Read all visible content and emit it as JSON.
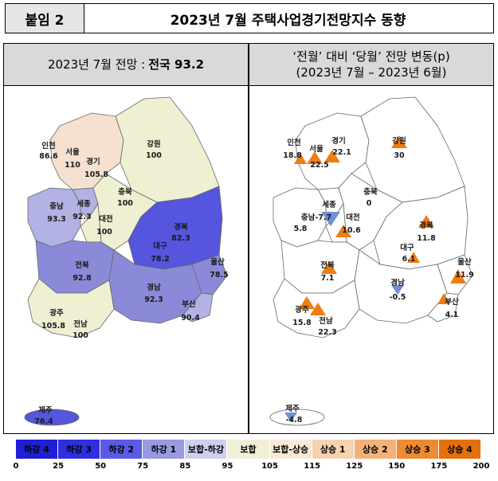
{
  "header": {
    "tag": "붙임 2",
    "title": "2023년 7월 주택사업경기전망지수 동향"
  },
  "left_panel": {
    "title_prefix": "2023년 7월 전망 : ",
    "title_bold": "전국 93.2"
  },
  "right_panel": {
    "title_line1": "‘전월’ 대비 ‘당월’ 전망 변동(p)",
    "title_line2": "(2023년 7월 – 2023년 6월)"
  },
  "regions_left": [
    {
      "name": "인천",
      "value": "86.6"
    },
    {
      "name": "서울",
      "value": "110"
    },
    {
      "name": "경기",
      "value": "105.8"
    },
    {
      "name": "강원",
      "value": "100"
    },
    {
      "name": "세종",
      "value": "92.3"
    },
    {
      "name": "충남",
      "value": "93.3"
    },
    {
      "name": "충북",
      "value": "100"
    },
    {
      "name": "대전",
      "value": "100"
    },
    {
      "name": "경북",
      "value": "82.3"
    },
    {
      "name": "대구",
      "value": "78.2"
    },
    {
      "name": "울산",
      "value": "78.5"
    },
    {
      "name": "전북",
      "value": "92.8"
    },
    {
      "name": "경남",
      "value": "92.3"
    },
    {
      "name": "부산",
      "value": "90.4"
    },
    {
      "name": "광주",
      "value": "105.8"
    },
    {
      "name": "전남",
      "value": "100"
    },
    {
      "name": "제주",
      "value": "76.4"
    }
  ],
  "regions_right": [
    {
      "name": "인천",
      "value": "18.8"
    },
    {
      "name": "서울",
      "value": "22.5"
    },
    {
      "name": "경기",
      "value": "22.1"
    },
    {
      "name": "강원",
      "value": "30"
    },
    {
      "name": "세종",
      "value": ""
    },
    {
      "name": "충북",
      "value": "0"
    },
    {
      "name": "충남",
      "value": "5.8"
    },
    {
      "name": "충남-7.7",
      "value": ""
    },
    {
      "name": "대전",
      "value": "10.6"
    },
    {
      "name": "경북",
      "value": "11.8"
    },
    {
      "name": "대구",
      "value": "6.1"
    },
    {
      "name": "울산",
      "value": "11.9"
    },
    {
      "name": "전북",
      "value": "7.1"
    },
    {
      "name": "경남",
      "value": "-0.5"
    },
    {
      "name": "부산",
      "value": "4.1"
    },
    {
      "name": "광주",
      "value": "15.8"
    },
    {
      "name": "전남",
      "value": "22.3"
    },
    {
      "name": "제주",
      "value": "-4.8"
    }
  ],
  "legend": [
    {
      "label": "하강 4",
      "color": "#1f1fd6",
      "text": "#000"
    },
    {
      "label": "하강 3",
      "color": "#2f2fe0",
      "text": "#000"
    },
    {
      "label": "하강 2",
      "color": "#5a5ae6",
      "text": "#000"
    },
    {
      "label": "하강 1",
      "color": "#9a9ae0",
      "text": "#000"
    },
    {
      "label": "보합-하강",
      "color": "#cfcfee",
      "text": "#000"
    },
    {
      "label": "보합",
      "color": "#f1f0d6",
      "text": "#000"
    },
    {
      "label": "보합-상승",
      "color": "#f7ead6",
      "text": "#000"
    },
    {
      "label": "상승 1",
      "color": "#f6d2b0",
      "text": "#000"
    },
    {
      "label": "상승 2",
      "color": "#f4b27a",
      "text": "#000"
    },
    {
      "label": "상승 3",
      "color": "#ee8a32",
      "text": "#000"
    },
    {
      "label": "상승 4",
      "color": "#e4700c",
      "text": "#000"
    }
  ],
  "ticks": [
    "0",
    "25",
    "50",
    "75",
    "85",
    "95",
    "105",
    "115",
    "125",
    "150",
    "175",
    "200"
  ],
  "colors": {
    "strong_blue": "#5555dd",
    "mid_blue": "#8a8ad8",
    "light_lilac": "#b2b2e4",
    "neutral": "#efefd2",
    "light_peach": "#f6e1d0",
    "marker_up": "#ef7d12",
    "marker_down": "#6f8fd6"
  }
}
